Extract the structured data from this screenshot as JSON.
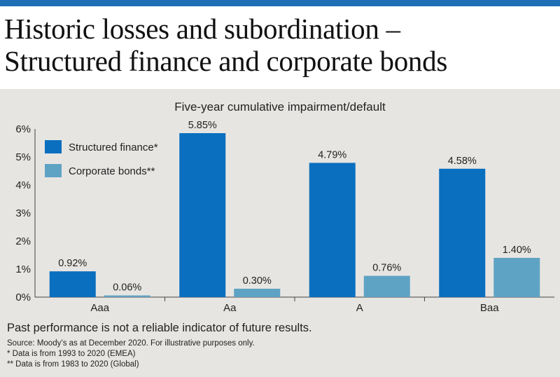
{
  "header": {
    "title_line1": "Historic losses and subordination –",
    "title_line2": "Structured finance and corporate bonds"
  },
  "colors": {
    "accent": "#1f6fb6",
    "series1": "#0a6fbf",
    "series2": "#5fa3c4",
    "panel": "#e7e5e2"
  },
  "chart_data": {
    "type": "bar",
    "title": "Five-year cumulative impairment/default",
    "categories": [
      "Aaa",
      "Aa",
      "A",
      "Baa"
    ],
    "series": [
      {
        "name": "Structured finance*",
        "values": [
          0.92,
          5.85,
          4.79,
          4.58
        ],
        "labels": [
          "0.92%",
          "5.85%",
          "4.79%",
          "4.58%"
        ]
      },
      {
        "name": "Corporate bonds**",
        "values": [
          0.06,
          0.3,
          0.76,
          1.4
        ],
        "labels": [
          "0.06%",
          "0.30%",
          "0.76%",
          "1.40%"
        ]
      }
    ],
    "ylim": [
      0,
      6
    ],
    "yticks": [
      "0%",
      "1%",
      "2%",
      "3%",
      "4%",
      "5%",
      "6%"
    ],
    "legend": "top-left",
    "grid": false
  },
  "footnotes": {
    "main": "Past performance is not a reliable indicator of future results.",
    "source": "Source: Moody’s as at December 2020.  For illustrative purposes only.",
    "note1": "* Data is from 1993 to 2020 (EMEA)",
    "note2": "** Data is from 1983 to 2020 (Global)"
  }
}
